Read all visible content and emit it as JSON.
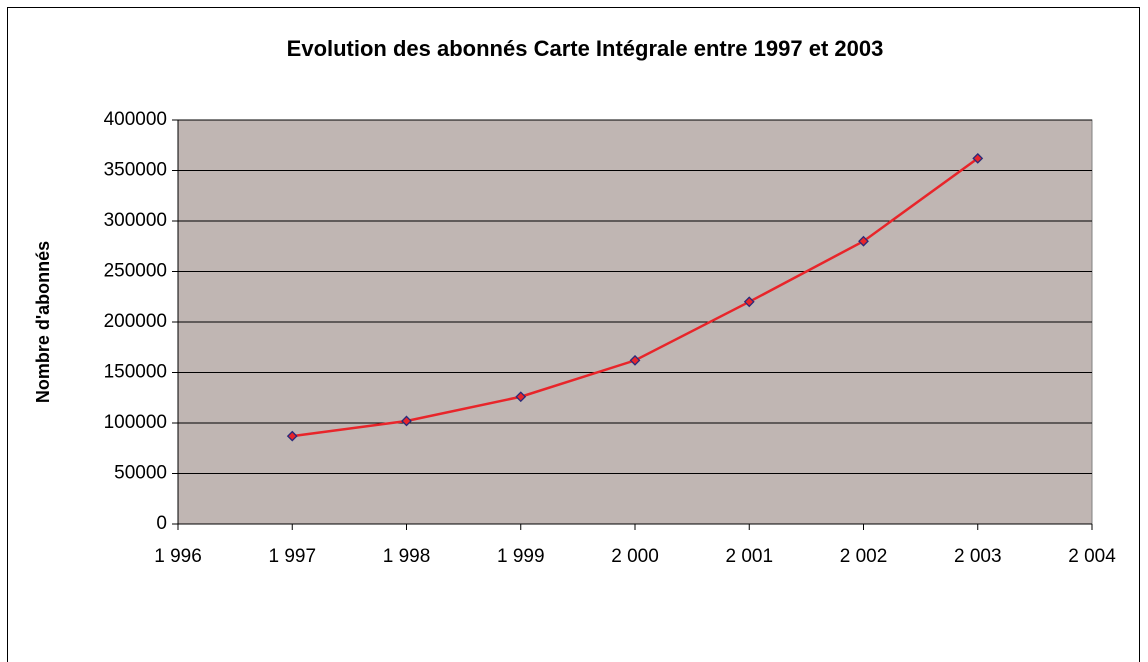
{
  "chart_data": {
    "type": "line",
    "title": "Evolution des abonnés Carte Intégrale entre 1997 et 2003",
    "y_label": "Nombre d'abonnés",
    "x": [
      1997,
      1998,
      1999,
      2000,
      2001,
      2002,
      2003
    ],
    "series": [
      {
        "color": "#e8252a",
        "marker_color": "#2a2a7a",
        "values": [
          87000,
          102000,
          126000,
          162000,
          220000,
          280000,
          362000
        ]
      }
    ],
    "xlim": [
      1996,
      2004
    ],
    "xticks": [
      {
        "value": 1996,
        "label": "1 996"
      },
      {
        "value": 1997,
        "label": "1 997"
      },
      {
        "value": 1998,
        "label": "1 998"
      },
      {
        "value": 1999,
        "label": "1 999"
      },
      {
        "value": 2000,
        "label": "2 000"
      },
      {
        "value": 2001,
        "label": "2 001"
      },
      {
        "value": 2002,
        "label": "2 002"
      },
      {
        "value": 2003,
        "label": "2 003"
      },
      {
        "value": 2004,
        "label": "2 004"
      }
    ],
    "ylim": [
      0,
      400000
    ],
    "yticks": [
      0,
      50000,
      100000,
      150000,
      200000,
      250000,
      300000,
      350000,
      400000
    ],
    "grid": true,
    "plot_background": "#c0b6b3"
  }
}
